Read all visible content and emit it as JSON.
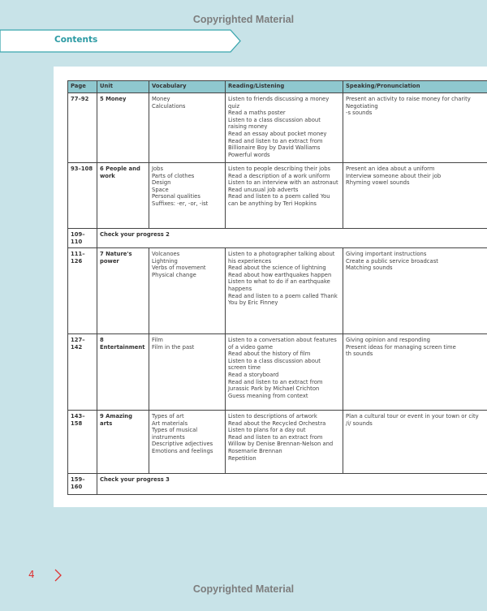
{
  "watermark": "Copyrighted Material",
  "section_tab": "Contents",
  "page_number": "4",
  "table": {
    "headers": [
      "Page",
      "Unit",
      "Vocabulary",
      "Reading/Listening",
      "Speaking/Pronunciation"
    ],
    "rows": [
      {
        "page": "77–92",
        "unit": "5 Money",
        "vocabulary": [
          "Money",
          "Calculations"
        ],
        "reading": [
          "Listen to friends discussing a money quiz",
          "Read a maths poster",
          "Listen to a class discussion about raising money",
          "Read an essay about pocket money",
          "Read and listen to an extract from Billionaire Boy by David Walliams",
          "Powerful words"
        ],
        "speaking": [
          "Present an activity to raise money for charity",
          "Negotiating",
          "-s sounds"
        ]
      },
      {
        "page": "93–108",
        "unit": "6 People and work",
        "vocabulary": [
          "Jobs",
          "Parts of clothes",
          "Design",
          "Space",
          "Personal qualities",
          "Suffixes: -er, -or, -ist"
        ],
        "reading": [
          "Listen to people describing their jobs",
          "Read a description of a work uniform",
          "Listen to an interview with an astronaut",
          "Read unusual job adverts",
          "Read and listen to a poem called You can be anything by Teri Hopkins"
        ],
        "speaking": [
          "Present an idea about a uniform",
          "Interview someone about their job",
          "Rhyming vowel sounds"
        ]
      },
      {
        "page": "109–110",
        "check": "Check your progress 2"
      },
      {
        "page": "111–126",
        "unit": "7 Nature's power",
        "vocabulary": [
          "Volcanoes",
          "Lightning",
          "Verbs of movement",
          "Physical change"
        ],
        "reading": [
          "Listen to a photographer talking about his experiences",
          "Read about the science of lightning",
          "Read about how earthquakes happen",
          "Listen to what to do if an earthquake happens",
          "Read and listen to a poem called Thank You by Eric Finney"
        ],
        "speaking": [
          "Giving important instructions",
          "Create a public service broadcast",
          "Matching sounds"
        ]
      },
      {
        "page": "127–142",
        "unit": "8 Entertainment",
        "vocabulary": [
          "Film",
          "Film in the past"
        ],
        "reading": [
          "Listen to a conversation about features of a video game",
          "Read about the history of film",
          "Listen to a class discussion about screen time",
          "Read a storyboard",
          "Read and listen to an extract from Jurassic Park by Michael Crichton",
          "Guess meaning from context"
        ],
        "speaking": [
          "Giving opinion and responding",
          "Present ideas for managing screen time",
          "th sounds"
        ]
      },
      {
        "page": "143–158",
        "unit": "9 Amazing arts",
        "vocabulary": [
          "Types of art",
          "Art materials",
          "Types of musical instruments",
          "Descriptive adjectives",
          "Emotions and feelings"
        ],
        "reading": [
          "Listen to descriptions of artwork",
          "Read about the Recycled Orchestra",
          "Listen to plans for a day out",
          "Read and listen to an extract from Willow by Denise Brennan-Nelson and Rosemarie Brennan",
          "Repetition"
        ],
        "speaking": [
          "Plan a cultural tour or event in your town or city",
          "/i/ sounds"
        ]
      },
      {
        "page": "159–160",
        "check": "Check your progress 3"
      }
    ]
  }
}
